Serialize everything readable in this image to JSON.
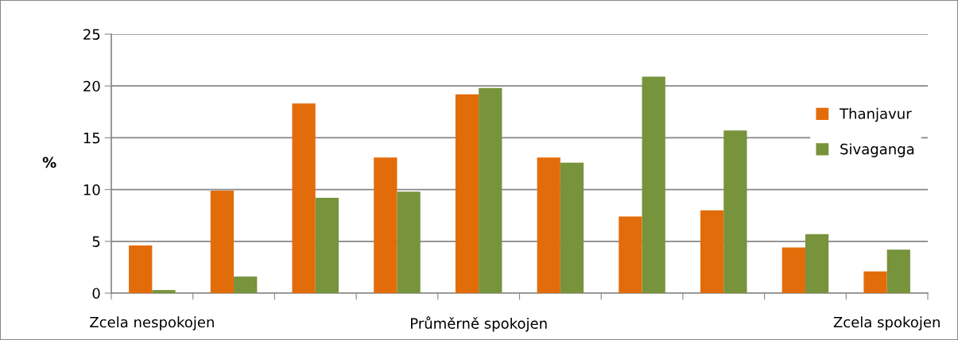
{
  "chart_data": {
    "type": "bar",
    "ylabel": "%",
    "categories": [
      "Zcela nespokojen",
      null,
      null,
      null,
      "Průměrně spokojen",
      null,
      null,
      null,
      null,
      "Zcela spokojen"
    ],
    "series": [
      {
        "name": "Thanjavur",
        "color": "#e36c0a",
        "values": [
          4.6,
          9.9,
          18.3,
          13.1,
          19.2,
          13.1,
          7.4,
          8.0,
          4.4,
          2.1
        ]
      },
      {
        "name": "Sivaganga",
        "color": "#77933c",
        "values": [
          0.3,
          1.6,
          9.2,
          9.8,
          19.8,
          12.6,
          20.9,
          15.7,
          5.7,
          4.2
        ]
      }
    ],
    "ylim": [
      0,
      25
    ],
    "yticks": [
      0,
      5,
      10,
      15,
      20,
      25
    ],
    "grid": "y",
    "legend": "right"
  }
}
